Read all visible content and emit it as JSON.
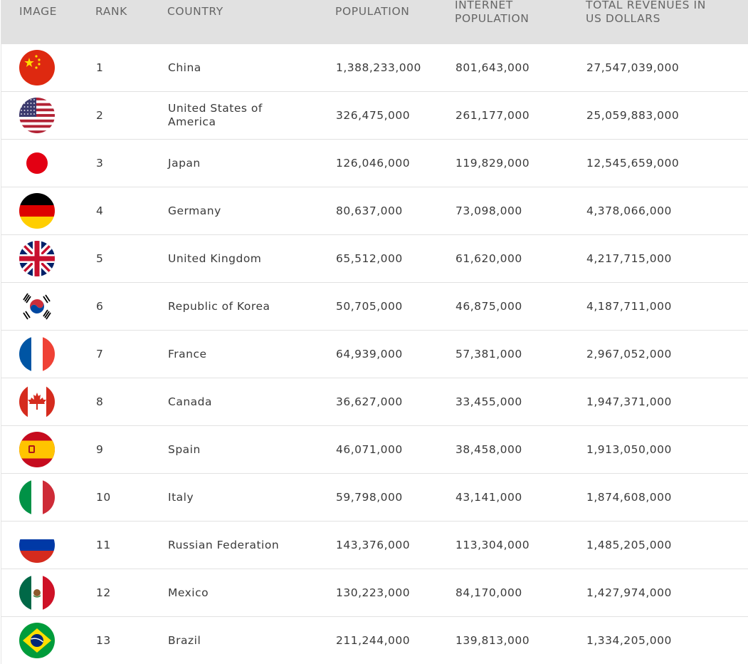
{
  "headers": {
    "image": "IMAGE",
    "rank": "RANK",
    "country": "COUNTRY",
    "population": "POPULATION",
    "internet_line1": "INTERNET",
    "internet_line2": "POPULATION",
    "revenue_line1": "TOTAL REVENUES IN",
    "revenue_line2": "US DOLLARS"
  },
  "rows": [
    {
      "flag": "china-flag-icon",
      "rank": "1",
      "country": "China",
      "population": "1,388,233,000",
      "internet": "801,643,000",
      "revenue": "27,547,039,000"
    },
    {
      "flag": "usa-flag-icon",
      "rank": "2",
      "country": "United States of America",
      "population": "326,475,000",
      "internet": "261,177,000",
      "revenue": "25,059,883,000"
    },
    {
      "flag": "japan-flag-icon",
      "rank": "3",
      "country": "Japan",
      "population": "126,046,000",
      "internet": "119,829,000",
      "revenue": "12,545,659,000"
    },
    {
      "flag": "germany-flag-icon",
      "rank": "4",
      "country": "Germany",
      "population": "80,637,000",
      "internet": "73,098,000",
      "revenue": "4,378,066,000"
    },
    {
      "flag": "uk-flag-icon",
      "rank": "5",
      "country": "United Kingdom",
      "population": "65,512,000",
      "internet": "61,620,000",
      "revenue": "4,217,715,000"
    },
    {
      "flag": "korea-flag-icon",
      "rank": "6",
      "country": "Republic of Korea",
      "population": "50,705,000",
      "internet": "46,875,000",
      "revenue": "4,187,711,000"
    },
    {
      "flag": "france-flag-icon",
      "rank": "7",
      "country": "France",
      "population": "64,939,000",
      "internet": "57,381,000",
      "revenue": "2,967,052,000"
    },
    {
      "flag": "canada-flag-icon",
      "rank": "8",
      "country": "Canada",
      "population": "36,627,000",
      "internet": "33,455,000",
      "revenue": "1,947,371,000"
    },
    {
      "flag": "spain-flag-icon",
      "rank": "9",
      "country": "Spain",
      "population": "46,071,000",
      "internet": "38,458,000",
      "revenue": "1,913,050,000"
    },
    {
      "flag": "italy-flag-icon",
      "rank": "10",
      "country": "Italy",
      "population": "59,798,000",
      "internet": "43,141,000",
      "revenue": "1,874,608,000"
    },
    {
      "flag": "russia-flag-icon",
      "rank": "11",
      "country": "Russian Federation",
      "population": "143,376,000",
      "internet": "113,304,000",
      "revenue": "1,485,205,000"
    },
    {
      "flag": "mexico-flag-icon",
      "rank": "12",
      "country": "Mexico",
      "population": "130,223,000",
      "internet": "84,170,000",
      "revenue": "1,427,974,000"
    },
    {
      "flag": "brazil-flag-icon",
      "rank": "13",
      "country": "Brazil",
      "population": "211,244,000",
      "internet": "139,813,000",
      "revenue": "1,334,205,000"
    }
  ]
}
